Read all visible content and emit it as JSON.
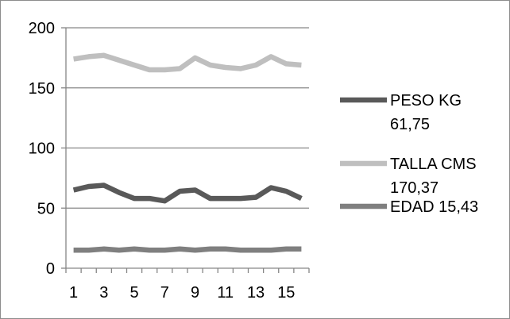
{
  "chart_data": {
    "type": "line",
    "title": "",
    "xlabel": "",
    "ylabel": "",
    "ylim": [
      0,
      200
    ],
    "yticks": [
      "0",
      "50",
      "100",
      "150",
      "200"
    ],
    "xticks": [
      "1",
      "3",
      "5",
      "7",
      "9",
      "11",
      "13",
      "15"
    ],
    "x": [
      1,
      2,
      3,
      4,
      5,
      6,
      7,
      8,
      9,
      10,
      11,
      12,
      13,
      14,
      15,
      16
    ],
    "grid": "horizontal",
    "legend_position": "right",
    "series": [
      {
        "name": "PESO KG",
        "legend_lines": [
          "PESO KG",
          "61,75"
        ],
        "color": "#595959",
        "values": [
          65,
          68,
          69,
          63,
          58,
          58,
          56,
          64,
          65,
          58,
          58,
          58,
          59,
          67,
          64,
          58
        ]
      },
      {
        "name": "TALLA CMS",
        "legend_lines": [
          "TALLA CMS",
          "170,37"
        ],
        "color": "#bfbfbf",
        "values": [
          174,
          176,
          177,
          173,
          169,
          165,
          165,
          166,
          175,
          169,
          167,
          166,
          169,
          176,
          170,
          169
        ]
      },
      {
        "name": "EDAD",
        "legend_lines": [
          "EDAD 15,43"
        ],
        "color": "#7f7f7f",
        "values": [
          15,
          15,
          16,
          15,
          16,
          15,
          15,
          16,
          15,
          16,
          16,
          15,
          15,
          15,
          16,
          16
        ]
      }
    ]
  }
}
